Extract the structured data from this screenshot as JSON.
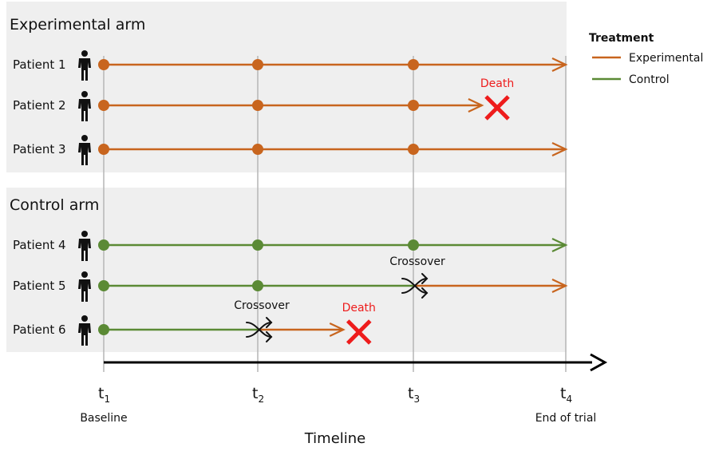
{
  "colors": {
    "experimental": "#c8651e",
    "control": "#5b8a35",
    "death": "#ee1c1c",
    "panel": "#efefef",
    "gridline": "#b5b5b5",
    "axis": "#000000"
  },
  "arms": [
    {
      "label": "Experimental arm"
    },
    {
      "label": "Control arm"
    }
  ],
  "patients": [
    {
      "label": "Patient 1",
      "arm": 0,
      "segments": [
        {
          "treatment": "experimental",
          "from": 1,
          "to": 4
        }
      ],
      "visits": [
        1,
        2,
        3
      ],
      "end": "arrow"
    },
    {
      "label": "Patient 2",
      "arm": 0,
      "segments": [
        {
          "treatment": "experimental",
          "from": 1,
          "to": 3.45
        }
      ],
      "visits": [
        1,
        2,
        3
      ],
      "end": "death",
      "end_time": 3.55
    },
    {
      "label": "Patient 3",
      "arm": 0,
      "segments": [
        {
          "treatment": "experimental",
          "from": 1,
          "to": 4
        }
      ],
      "visits": [
        1,
        2,
        3
      ],
      "end": "arrow"
    },
    {
      "label": "Patient 4",
      "arm": 1,
      "segments": [
        {
          "treatment": "control",
          "from": 1,
          "to": 4
        }
      ],
      "visits": [
        1,
        2,
        3
      ],
      "end": "arrow"
    },
    {
      "label": "Patient 5",
      "arm": 1,
      "segments": [
        {
          "treatment": "control",
          "from": 1,
          "to": 3
        },
        {
          "treatment": "experimental",
          "from": 3,
          "to": 4
        }
      ],
      "visits": [
        1,
        2
      ],
      "end": "arrow",
      "crossover_time": 3
    },
    {
      "label": "Patient 6",
      "arm": 1,
      "segments": [
        {
          "treatment": "control",
          "from": 1,
          "to": 2
        },
        {
          "treatment": "experimental",
          "from": 2,
          "to": 2.55
        }
      ],
      "visits": [
        1
      ],
      "end": "death",
      "end_time": 2.65,
      "crossover_time": 2
    }
  ],
  "events": {
    "death_label": "Death",
    "crossover_label": "Crossover"
  },
  "timeline": {
    "title": "Timeline",
    "ticks": [
      {
        "main": "t",
        "sub": "1",
        "caption": "Baseline"
      },
      {
        "main": "t",
        "sub": "2",
        "caption": ""
      },
      {
        "main": "t",
        "sub": "3",
        "caption": ""
      },
      {
        "main": "t",
        "sub": "4",
        "caption": "End of trial"
      }
    ]
  },
  "legend": {
    "title": "Treatment",
    "items": [
      {
        "label": "Experimental",
        "treatment": "experimental"
      },
      {
        "label": "Control",
        "treatment": "control"
      }
    ]
  }
}
